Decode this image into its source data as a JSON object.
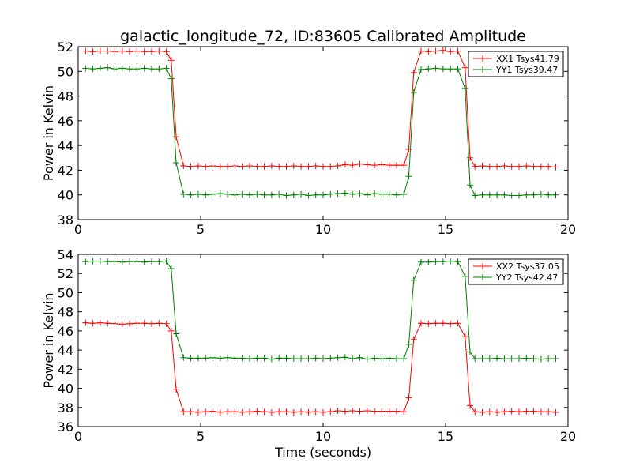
{
  "chart_data": [
    {
      "type": "line",
      "title": "galactic_longitude_72, ID:83605 Calibrated Amplitude",
      "xlabel": "",
      "ylabel": "Power in Kelvin",
      "xlim": [
        0,
        20
      ],
      "ylim": [
        38,
        52
      ],
      "xticks": [
        0,
        5,
        10,
        15,
        20
      ],
      "yticks": [
        38,
        40,
        42,
        44,
        46,
        48,
        50,
        52
      ],
      "grid": false,
      "legend_position": "top-right",
      "x": [
        0.3,
        0.6,
        0.9,
        1.2,
        1.5,
        1.8,
        2.1,
        2.4,
        2.7,
        3.0,
        3.3,
        3.6,
        3.8,
        4.0,
        4.3,
        4.6,
        4.9,
        5.2,
        5.5,
        5.8,
        6.1,
        6.4,
        6.7,
        7.0,
        7.3,
        7.6,
        7.9,
        8.2,
        8.5,
        8.8,
        9.1,
        9.4,
        9.7,
        10.0,
        10.3,
        10.6,
        10.9,
        11.2,
        11.5,
        11.8,
        12.1,
        12.4,
        12.7,
        13.0,
        13.3,
        13.5,
        13.7,
        14.0,
        14.3,
        14.6,
        14.9,
        15.2,
        15.5,
        15.8,
        16.0,
        16.2,
        16.5,
        16.8,
        17.1,
        17.4,
        17.7,
        18.0,
        18.3,
        18.6,
        18.9,
        19.2,
        19.5
      ],
      "series": [
        {
          "name": "XX1 Tsys41.79",
          "color": "#ff0000",
          "values": [
            51.65,
            51.6,
            51.65,
            51.65,
            51.6,
            51.65,
            51.6,
            51.65,
            51.6,
            51.6,
            51.65,
            51.6,
            50.9,
            44.7,
            42.35,
            42.3,
            42.35,
            42.3,
            42.35,
            42.3,
            42.3,
            42.35,
            42.3,
            42.35,
            42.3,
            42.3,
            42.35,
            42.3,
            42.3,
            42.35,
            42.3,
            42.3,
            42.35,
            42.3,
            42.3,
            42.35,
            42.45,
            42.4,
            42.5,
            42.45,
            42.4,
            42.45,
            42.4,
            42.4,
            42.4,
            43.7,
            49.9,
            51.65,
            51.6,
            51.65,
            51.7,
            51.6,
            51.65,
            50.3,
            43.0,
            42.3,
            42.35,
            42.3,
            42.3,
            42.35,
            42.3,
            42.3,
            42.35,
            42.3,
            42.3,
            42.3,
            42.25
          ]
        },
        {
          "name": "YY1 Tsys39.47",
          "color": "#008000",
          "values": [
            50.25,
            50.2,
            50.25,
            50.3,
            50.2,
            50.25,
            50.2,
            50.2,
            50.25,
            50.2,
            50.2,
            50.25,
            49.4,
            42.6,
            40.05,
            40.0,
            40.05,
            40.0,
            40.05,
            40.1,
            40.05,
            40.0,
            40.05,
            40.0,
            40.05,
            40.0,
            40.0,
            40.05,
            39.95,
            40.0,
            40.05,
            39.95,
            40.0,
            40.0,
            40.05,
            40.1,
            40.15,
            40.05,
            40.1,
            40.0,
            40.1,
            40.05,
            40.05,
            40.0,
            40.05,
            41.5,
            48.3,
            50.15,
            50.2,
            50.25,
            50.2,
            50.2,
            50.2,
            48.6,
            40.8,
            39.95,
            40.0,
            40.0,
            40.0,
            40.0,
            39.95,
            39.95,
            40.0,
            40.0,
            40.05,
            40.0,
            40.0
          ]
        }
      ]
    },
    {
      "type": "line",
      "title": "",
      "xlabel": "Time (seconds)",
      "ylabel": "Power in Kelvin",
      "xlim": [
        0,
        20
      ],
      "ylim": [
        36,
        54
      ],
      "xticks": [
        0,
        5,
        10,
        15,
        20
      ],
      "yticks": [
        36,
        38,
        40,
        42,
        44,
        46,
        48,
        50,
        52,
        54
      ],
      "grid": false,
      "legend_position": "top-right",
      "x": [
        0.3,
        0.6,
        0.9,
        1.2,
        1.5,
        1.8,
        2.1,
        2.4,
        2.7,
        3.0,
        3.3,
        3.6,
        3.8,
        4.0,
        4.3,
        4.6,
        4.9,
        5.2,
        5.5,
        5.8,
        6.1,
        6.4,
        6.7,
        7.0,
        7.3,
        7.6,
        7.9,
        8.2,
        8.5,
        8.8,
        9.1,
        9.4,
        9.7,
        10.0,
        10.3,
        10.6,
        10.9,
        11.2,
        11.5,
        11.8,
        12.1,
        12.4,
        12.7,
        13.0,
        13.3,
        13.5,
        13.7,
        14.0,
        14.3,
        14.6,
        14.9,
        15.2,
        15.5,
        15.8,
        16.0,
        16.2,
        16.5,
        16.8,
        17.1,
        17.4,
        17.7,
        18.0,
        18.3,
        18.6,
        18.9,
        19.2,
        19.5
      ],
      "series": [
        {
          "name": "XX2 Tsys37.05",
          "color": "#ff0000",
          "values": [
            46.85,
            46.8,
            46.85,
            46.8,
            46.75,
            46.7,
            46.75,
            46.8,
            46.8,
            46.75,
            46.8,
            46.75,
            46.0,
            39.9,
            37.55,
            37.55,
            37.5,
            37.55,
            37.6,
            37.5,
            37.55,
            37.55,
            37.5,
            37.55,
            37.6,
            37.55,
            37.5,
            37.55,
            37.55,
            37.5,
            37.55,
            37.5,
            37.55,
            37.5,
            37.55,
            37.65,
            37.6,
            37.65,
            37.6,
            37.65,
            37.6,
            37.6,
            37.6,
            37.6,
            37.55,
            39.0,
            45.1,
            46.8,
            46.75,
            46.8,
            46.8,
            46.75,
            46.8,
            45.4,
            38.2,
            37.55,
            37.5,
            37.55,
            37.5,
            37.55,
            37.6,
            37.55,
            37.6,
            37.6,
            37.55,
            37.55,
            37.5
          ]
        },
        {
          "name": "YY2 Tsys42.47",
          "color": "#008000",
          "values": [
            53.25,
            53.3,
            53.3,
            53.25,
            53.25,
            53.2,
            53.25,
            53.25,
            53.2,
            53.25,
            53.25,
            53.3,
            52.5,
            45.7,
            43.2,
            43.15,
            43.15,
            43.15,
            43.2,
            43.15,
            43.2,
            43.15,
            43.15,
            43.1,
            43.15,
            43.15,
            43.05,
            43.15,
            43.15,
            43.1,
            43.1,
            43.1,
            43.15,
            43.1,
            43.15,
            43.2,
            43.25,
            43.1,
            43.2,
            43.05,
            43.15,
            43.1,
            43.15,
            43.1,
            43.1,
            44.6,
            51.3,
            53.2,
            53.2,
            53.25,
            53.25,
            53.3,
            53.25,
            51.7,
            43.8,
            43.1,
            43.1,
            43.1,
            43.15,
            43.1,
            43.1,
            43.1,
            43.15,
            43.1,
            43.05,
            43.1,
            43.1
          ]
        }
      ]
    }
  ]
}
